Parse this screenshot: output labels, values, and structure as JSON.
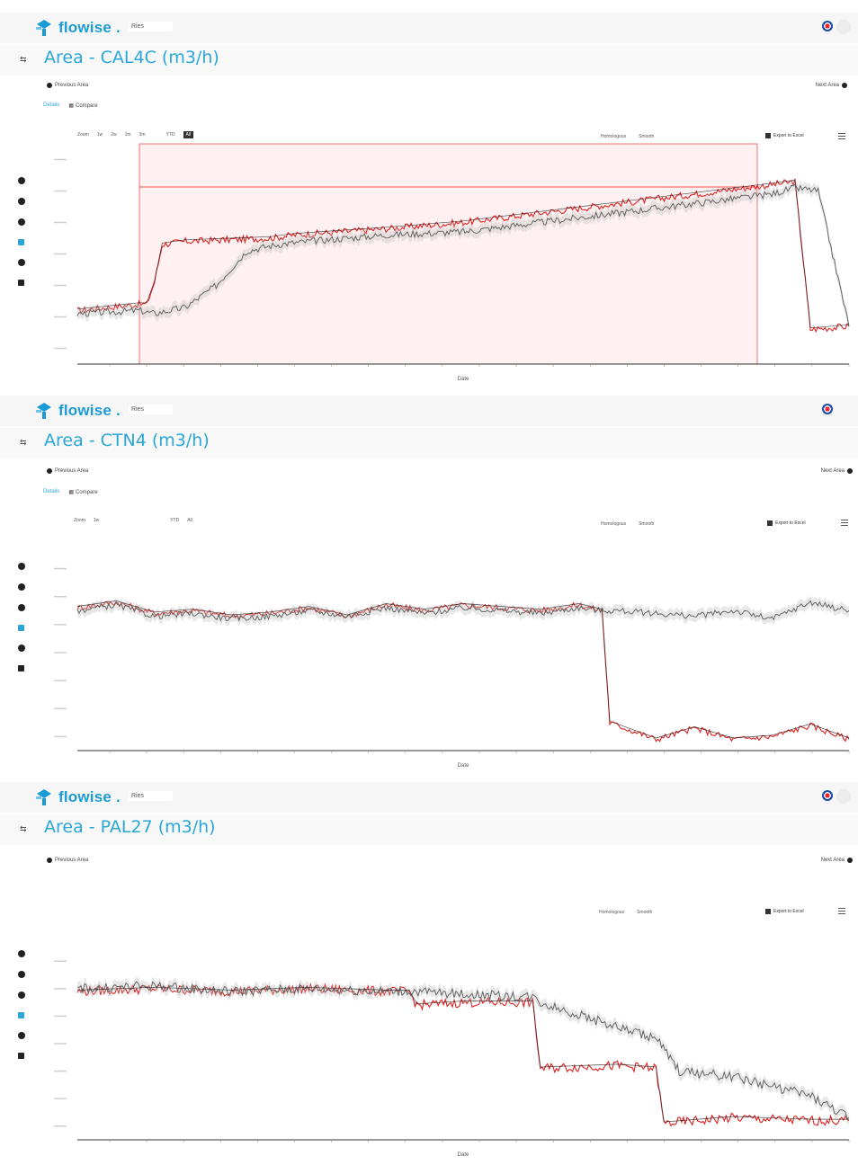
{
  "app": {
    "name": "flowise",
    "crumb": "Ries"
  },
  "colors": {
    "accent": "#2aa6d9",
    "logo": "#1a9bd7",
    "actual": "#e02020",
    "predicted": "#222222",
    "band": "#bdbdbd",
    "highlight": "#f0b400"
  },
  "common": {
    "previous_area": "Previous Area",
    "next_area": "Next Area",
    "tab_details": "Details",
    "tab_compare": "Compare",
    "zoom_label": "Zoom",
    "zoom_options": [
      "1w",
      "2w",
      "1m",
      "3m",
      "YTD"
    ],
    "zoom_all": "All",
    "homologous": "Homologous",
    "smooth": "Smooth",
    "export": "Export to Excel",
    "x_axis_title": "Date"
  },
  "icons": {
    "logo": "flowise-logo-icon",
    "lang": "flag-icon",
    "menu": "hamburger-menu-icon",
    "prev": "arrow-left-icon",
    "next": "arrow-right-icon",
    "side": [
      "clock-icon",
      "info-icon",
      "settings-icon",
      "chart-icon",
      "globe-icon",
      "report-icon"
    ]
  },
  "panels": [
    {
      "title": "Area - CAL4C (m3/h)"
    },
    {
      "title": "Area - CTN4 (m3/h)"
    },
    {
      "title": "Area - PAL27 (m3/h)"
    }
  ],
  "chart_data": [
    {
      "type": "line",
      "title": "Area - CAL4C (m3/h)",
      "xlabel": "Date",
      "ylabel": "",
      "x_range": [
        0,
        100
      ],
      "ylim": [
        0,
        7
      ],
      "series": [
        {
          "x": [
            0,
            8,
            9,
            10,
            11,
            14,
            25,
            28,
            40,
            50,
            60,
            70,
            80,
            90,
            93,
            95,
            100
          ],
          "y": [
            1.7,
            1.9,
            1.9,
            2.6,
            3.8,
            3.9,
            4.0,
            4.1,
            4.3,
            4.5,
            4.8,
            5.1,
            5.4,
            5.7,
            5.8,
            1.1,
            1.2
          ]
        },
        {
          "x": [
            0,
            8,
            10,
            14,
            18,
            22,
            26,
            30,
            40,
            50,
            60,
            70,
            80,
            90,
            93,
            96,
            100
          ],
          "y": [
            1.6,
            1.7,
            1.6,
            1.8,
            2.5,
            3.6,
            3.8,
            3.9,
            4.1,
            4.2,
            4.5,
            4.8,
            5.1,
            5.4,
            5.6,
            5.5,
            1.2
          ]
        }
      ],
      "grid": false
    },
    {
      "type": "line",
      "title": "Area - CTN4 (m3/h)",
      "xlabel": "Date",
      "ylabel": "",
      "x_range": [
        0,
        100
      ],
      "ylim": [
        0,
        7
      ],
      "series": [
        {
          "x": [
            0,
            5,
            10,
            15,
            20,
            25,
            30,
            35,
            40,
            45,
            50,
            55,
            60,
            65,
            68,
            69,
            75,
            80,
            85,
            90,
            95,
            100
          ],
          "y": [
            5.1,
            5.3,
            4.9,
            5.0,
            4.8,
            4.9,
            5.1,
            4.8,
            5.2,
            5.0,
            5.2,
            5.1,
            5.0,
            5.2,
            5.0,
            1.0,
            0.4,
            0.8,
            0.4,
            0.5,
            0.9,
            0.4
          ]
        },
        {
          "x": [
            0,
            5,
            10,
            15,
            20,
            25,
            30,
            35,
            40,
            45,
            50,
            55,
            60,
            65,
            68,
            70,
            75,
            80,
            85,
            90,
            95,
            100
          ],
          "y": [
            5.0,
            5.2,
            4.8,
            4.9,
            4.7,
            4.8,
            5.0,
            4.8,
            5.1,
            4.9,
            5.1,
            5.0,
            4.9,
            5.1,
            5.0,
            5.0,
            4.9,
            4.8,
            5.0,
            4.7,
            5.3,
            5.0
          ]
        }
      ],
      "grid": false
    },
    {
      "type": "line",
      "title": "Area - PAL27 (m3/h)",
      "xlabel": "Date",
      "ylabel": "",
      "x_range": [
        0,
        100
      ],
      "ylim": [
        0,
        7
      ],
      "series": [
        {
          "x": [
            0,
            10,
            20,
            30,
            40,
            43,
            44,
            50,
            59,
            60,
            70,
            75,
            76,
            85,
            95,
            100
          ],
          "y": [
            5.4,
            5.5,
            5.4,
            5.5,
            5.4,
            5.4,
            4.9,
            5.0,
            5.0,
            2.6,
            2.7,
            2.6,
            0.6,
            0.8,
            0.7,
            0.7
          ]
        },
        {
          "x": [
            0,
            10,
            20,
            30,
            40,
            43,
            50,
            59,
            60,
            70,
            75,
            78,
            85,
            95,
            100
          ],
          "y": [
            5.5,
            5.6,
            5.4,
            5.5,
            5.4,
            5.4,
            5.3,
            5.2,
            5.0,
            4.1,
            3.7,
            2.5,
            2.3,
            1.6,
            0.8
          ]
        }
      ],
      "grid": false
    }
  ]
}
